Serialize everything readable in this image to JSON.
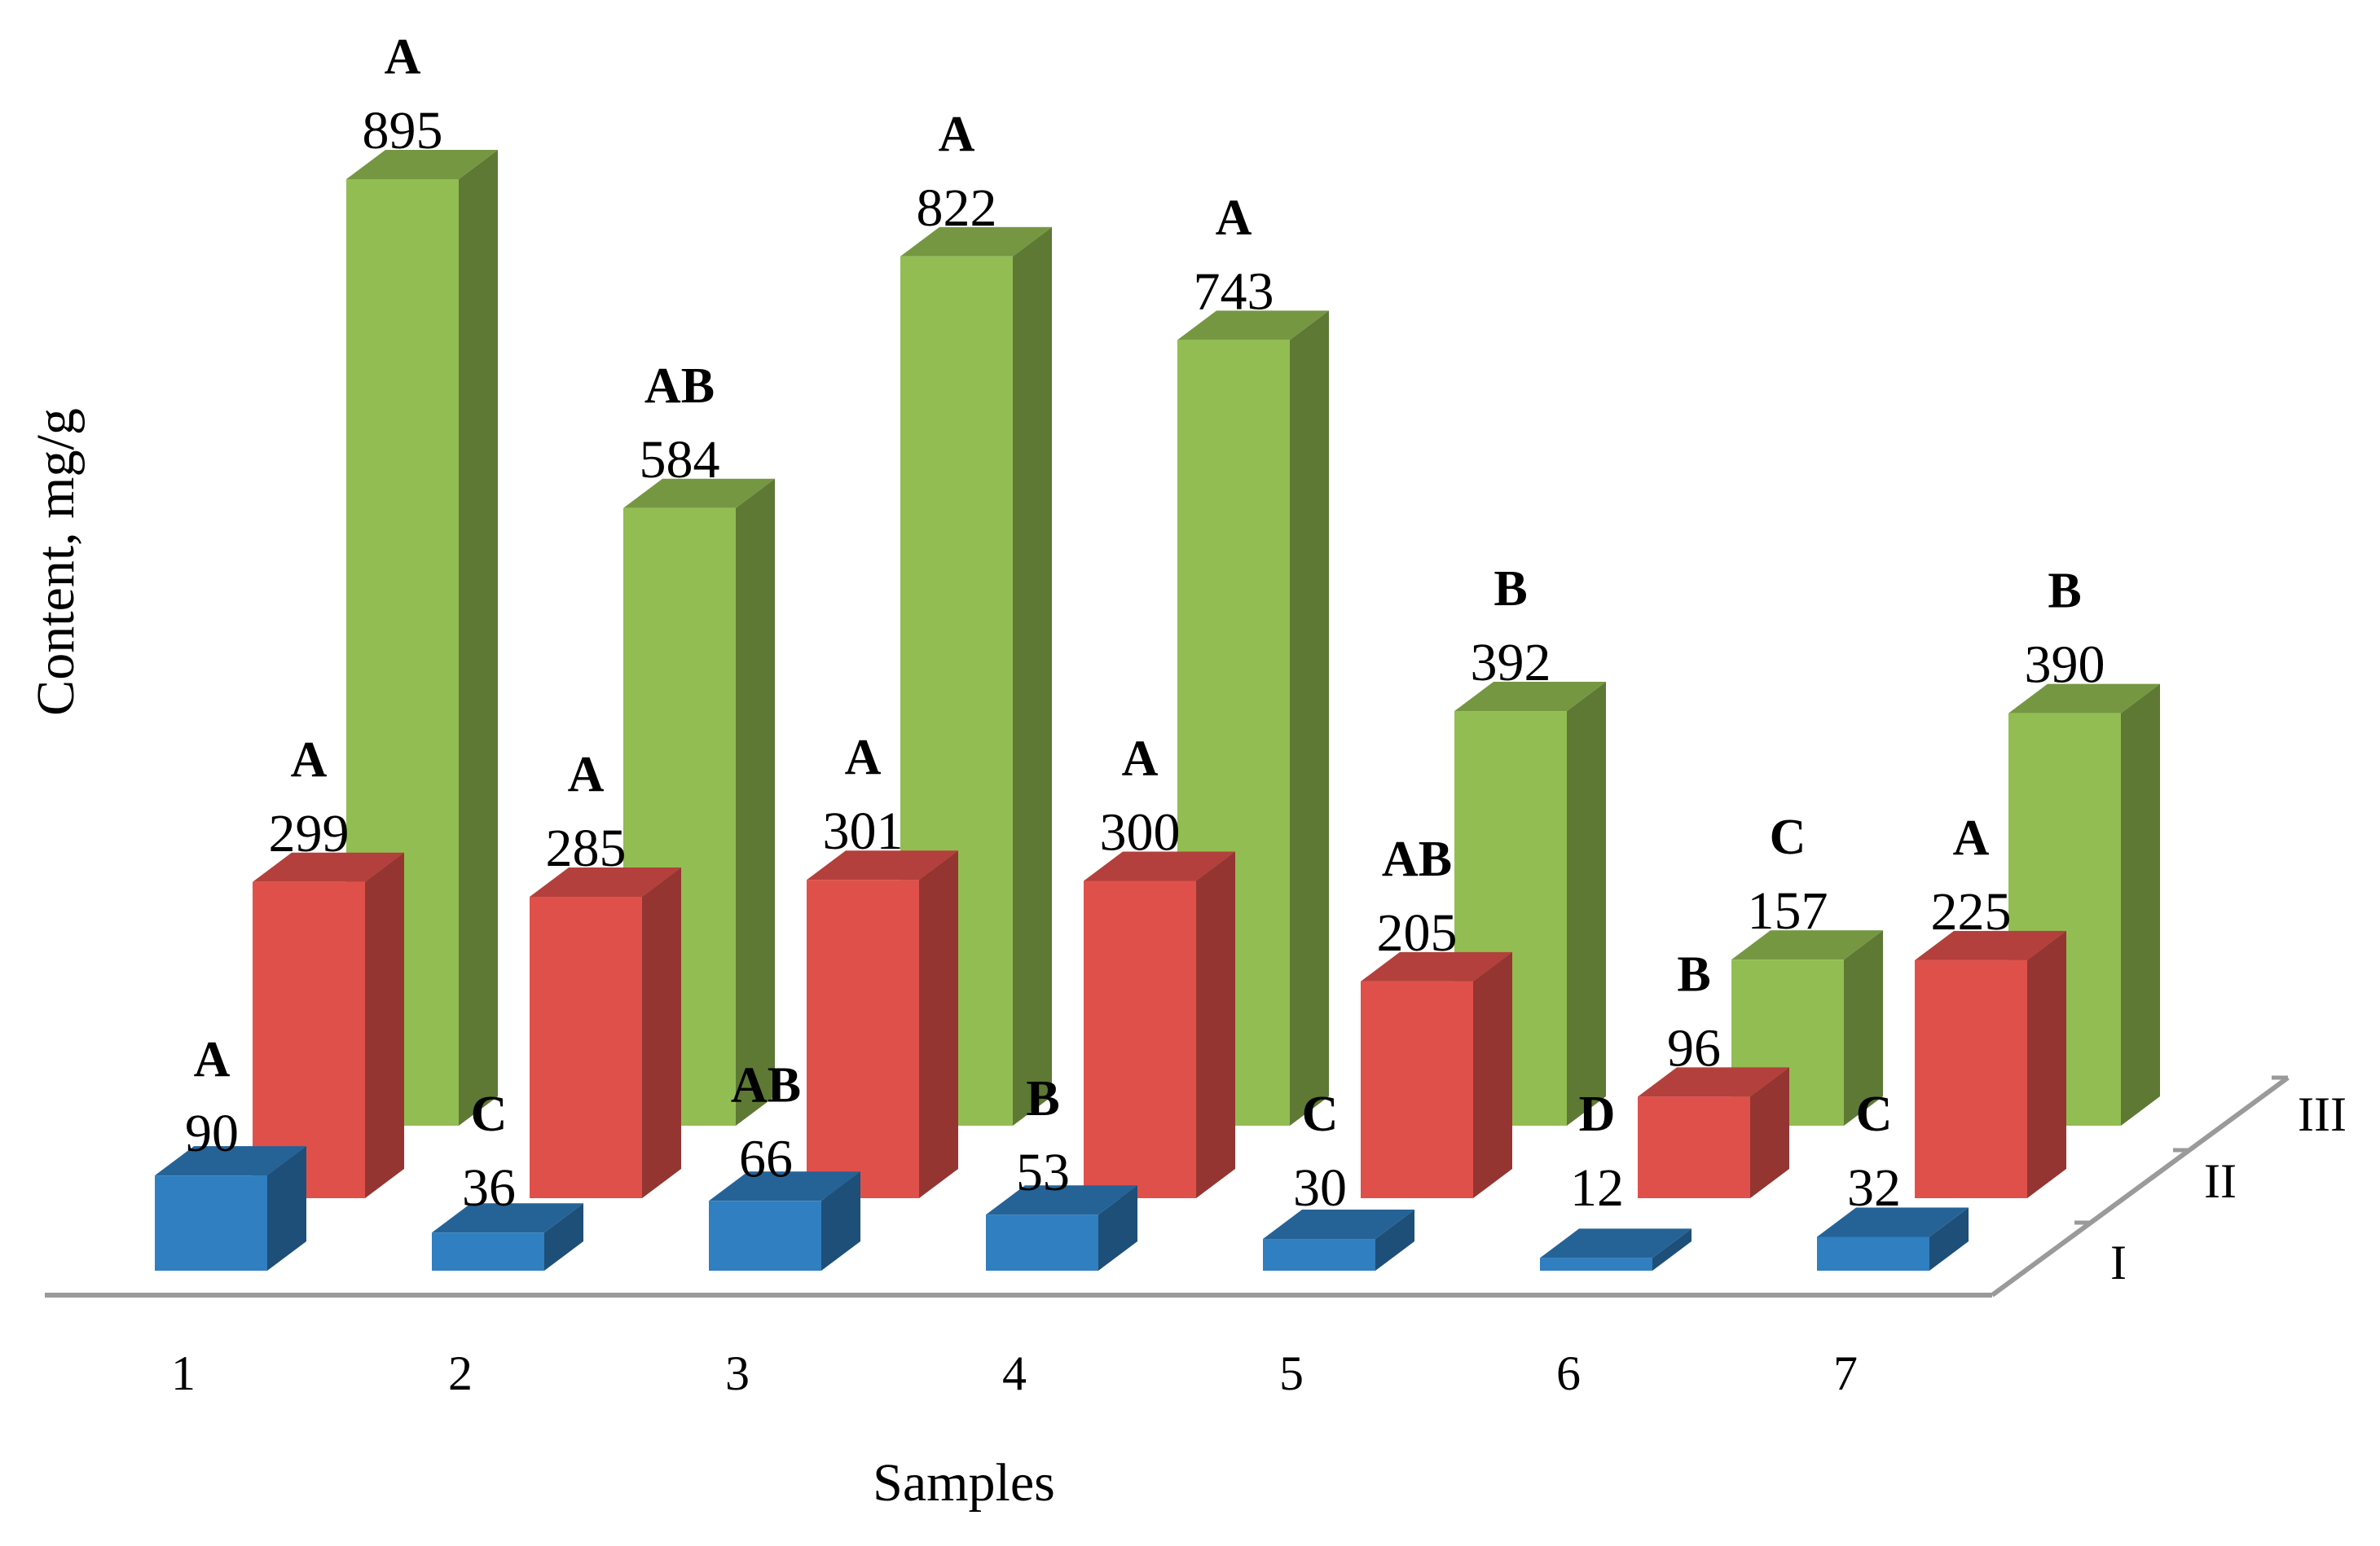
{
  "chart_data": {
    "type": "bar",
    "style": "3d-clustered",
    "title": "",
    "xlabel": "Samples",
    "ylabel": "Content, mg/g",
    "categories": [
      "1",
      "2",
      "3",
      "4",
      "5",
      "6",
      "7"
    ],
    "ylim": [
      0,
      900
    ],
    "grid": false,
    "series": [
      {
        "name": "I",
        "color": "#2f7fc1",
        "values": [
          90,
          36,
          66,
          53,
          30,
          12,
          32
        ],
        "letters": [
          "A",
          "C",
          "AB",
          "B",
          "C",
          "D",
          "C"
        ]
      },
      {
        "name": "II",
        "color": "#e0504b",
        "values": [
          299,
          285,
          301,
          300,
          205,
          96,
          225
        ],
        "letters": [
          "A",
          "A",
          "A",
          "A",
          "AB",
          "B",
          "A"
        ]
      },
      {
        "name": "III",
        "color": "#92bd52",
        "values": [
          895,
          584,
          822,
          743,
          392,
          157,
          390
        ],
        "letters": [
          "A",
          "AB",
          "A",
          "A",
          "B",
          "C",
          "B"
        ]
      }
    ]
  }
}
